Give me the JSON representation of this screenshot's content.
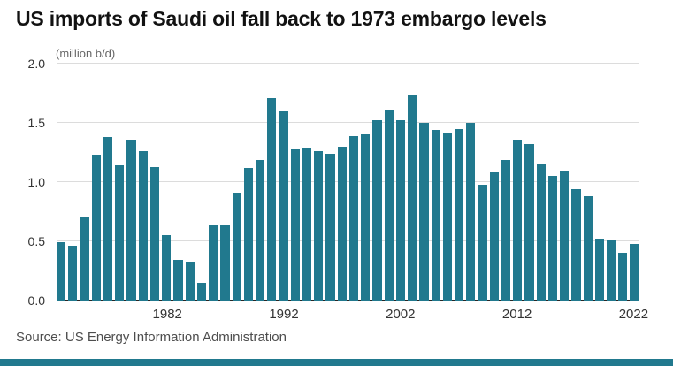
{
  "header": {
    "title": "US imports of Saudi oil fall back to 1973 embargo levels"
  },
  "footer": {
    "source": "Source: US Energy Information Administration"
  },
  "colors": {
    "bar": "#21798e",
    "bottom_bar": "#21798e",
    "grid": "#dcdcdc",
    "baseline": "#262626",
    "divider": "#dddddd",
    "title_text": "#121212",
    "axis_text": "#333333",
    "unit_text": "#666666",
    "source_text": "#4d4d4d"
  },
  "chart_data": {
    "type": "bar",
    "title": "US imports of Saudi oil fall back to 1973 embargo levels",
    "ylabel": "(million b/d)",
    "xlabel": "",
    "ylim": [
      0,
      2.0
    ],
    "grid": true,
    "legend": "none",
    "categories": [
      1973,
      1974,
      1975,
      1976,
      1977,
      1978,
      1979,
      1980,
      1981,
      1982,
      1983,
      1984,
      1985,
      1986,
      1987,
      1988,
      1989,
      1990,
      1991,
      1992,
      1993,
      1994,
      1995,
      1996,
      1997,
      1998,
      1999,
      2000,
      2001,
      2002,
      2003,
      2004,
      2005,
      2006,
      2007,
      2008,
      2009,
      2010,
      2011,
      2012,
      2013,
      2014,
      2015,
      2016,
      2017,
      2018,
      2019,
      2020,
      2021,
      2022
    ],
    "values": [
      0.49,
      0.46,
      0.71,
      1.23,
      1.38,
      1.14,
      1.36,
      1.26,
      1.13,
      0.55,
      0.34,
      0.33,
      0.15,
      0.64,
      0.64,
      0.91,
      1.12,
      1.19,
      1.71,
      1.6,
      1.28,
      1.29,
      1.26,
      1.24,
      1.3,
      1.39,
      1.4,
      1.52,
      1.61,
      1.52,
      1.73,
      1.5,
      1.44,
      1.42,
      1.45,
      1.5,
      0.98,
      1.08,
      1.19,
      1.36,
      1.32,
      1.16,
      1.05,
      1.1,
      0.94,
      0.88,
      0.52,
      0.51,
      0.4,
      0.48
    ],
    "x_ticks": [
      1982,
      1992,
      2002,
      2012,
      2022
    ],
    "y_ticks": [
      0,
      0.5,
      1,
      1.5,
      2
    ],
    "y_tick_labels": [
      "0.0",
      "0.5",
      "1.0",
      "1.5",
      "2.0"
    ]
  }
}
